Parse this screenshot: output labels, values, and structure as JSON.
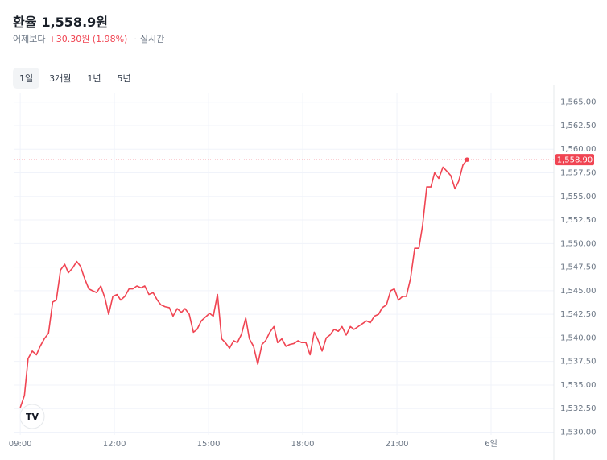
{
  "chart_data": {
    "type": "line",
    "title": "환율",
    "price": "1,558.9원",
    "subtitle": {
      "prefix": "어제보다",
      "change": "+30.30원 (1.98%)",
      "mode": "실시간"
    },
    "tabs": [
      "1일",
      "3개월",
      "1년",
      "5년"
    ],
    "active_tab": 0,
    "x": [
      0,
      8,
      15,
      23,
      31,
      38,
      46,
      54,
      62,
      69,
      77,
      85,
      92,
      100,
      108,
      115,
      123,
      131,
      138,
      146,
      154,
      162,
      169,
      177,
      185,
      192,
      200,
      208,
      215,
      223,
      231,
      238,
      246,
      254,
      262,
      269,
      277,
      285,
      292,
      300,
      308,
      315,
      323,
      331,
      338,
      346,
      354,
      362,
      369,
      377,
      385,
      392,
      400,
      408,
      415,
      423,
      431,
      438,
      446,
      454,
      462,
      469,
      477,
      485,
      492,
      500,
      508,
      515,
      523,
      531,
      538,
      546,
      554,
      562,
      569,
      577,
      585,
      592,
      600,
      608,
      615,
      623,
      631,
      638,
      646,
      654,
      662,
      669,
      677,
      685,
      692,
      700,
      708,
      715,
      723,
      731,
      738,
      746,
      754,
      762,
      769,
      777,
      785,
      792,
      800,
      808,
      815,
      823,
      831,
      838,
      846,
      854
    ],
    "values": [
      1532.6,
      1533.9,
      1537.8,
      1538.6,
      1538.2,
      1539.1,
      1539.9,
      1540.5,
      1543.8,
      1544.0,
      1547.2,
      1547.8,
      1546.9,
      1547.4,
      1548.1,
      1547.6,
      1546.3,
      1545.2,
      1545.0,
      1544.8,
      1545.5,
      1544.2,
      1542.5,
      1544.4,
      1544.6,
      1544.0,
      1544.4,
      1545.2,
      1545.2,
      1545.5,
      1545.3,
      1545.5,
      1544.6,
      1544.8,
      1544.0,
      1543.5,
      1543.3,
      1543.2,
      1542.3,
      1543.1,
      1542.7,
      1543.1,
      1542.5,
      1540.6,
      1540.9,
      1541.8,
      1542.2,
      1542.6,
      1542.3,
      1544.6,
      1539.9,
      1539.5,
      1538.9,
      1539.7,
      1539.5,
      1540.4,
      1542.1,
      1539.9,
      1539.1,
      1537.2,
      1539.3,
      1539.7,
      1540.6,
      1541.2,
      1539.5,
      1539.9,
      1539.1,
      1539.3,
      1539.4,
      1539.7,
      1539.5,
      1539.5,
      1538.2,
      1540.6,
      1539.8,
      1538.6,
      1540.0,
      1540.3,
      1540.9,
      1540.7,
      1541.2,
      1540.3,
      1541.2,
      1540.9,
      1541.2,
      1541.5,
      1541.8,
      1541.6,
      1542.3,
      1542.5,
      1543.2,
      1543.5,
      1545.0,
      1545.2,
      1544.0,
      1544.4,
      1544.4,
      1546.3,
      1549.5,
      1549.5,
      1551.9,
      1556.0,
      1556.0,
      1557.5,
      1556.9,
      1558.1,
      1557.7,
      1557.2,
      1555.8,
      1556.6,
      1558.3,
      1558.9
    ],
    "color": "#f04452",
    "xlim": [
      -11,
      1020
    ],
    "xticks": [
      {
        "value": 0,
        "label": "09:00"
      },
      {
        "value": 180,
        "label": "12:00"
      },
      {
        "value": 360,
        "label": "15:00"
      },
      {
        "value": 540,
        "label": "18:00"
      },
      {
        "value": 720,
        "label": "21:00"
      },
      {
        "value": 900,
        "label": "6일"
      }
    ],
    "ylim": [
      1529.7,
      1566
    ],
    "yticks": [
      {
        "value": 1530,
        "label": "1,530.00"
      },
      {
        "value": 1532.5,
        "label": "1,532.50"
      },
      {
        "value": 1535,
        "label": "1,535.00"
      },
      {
        "value": 1537.5,
        "label": "1,537.50"
      },
      {
        "value": 1540,
        "label": "1,540.00"
      },
      {
        "value": 1542.5,
        "label": "1,542.50"
      },
      {
        "value": 1545,
        "label": "1,545.00"
      },
      {
        "value": 1547.5,
        "label": "1,547.50"
      },
      {
        "value": 1550,
        "label": "1,550.00"
      },
      {
        "value": 1552.5,
        "label": "1,552.50"
      },
      {
        "value": 1555,
        "label": "1,555.00"
      },
      {
        "value": 1557.5,
        "label": "1,557.50"
      },
      {
        "value": 1560,
        "label": "1,560.00"
      },
      {
        "value": 1562.5,
        "label": "1,562.50"
      },
      {
        "value": 1565,
        "label": "1,565.00"
      }
    ],
    "last_value": {
      "value": 1558.9,
      "label": "1,558.90"
    },
    "grid": true
  }
}
